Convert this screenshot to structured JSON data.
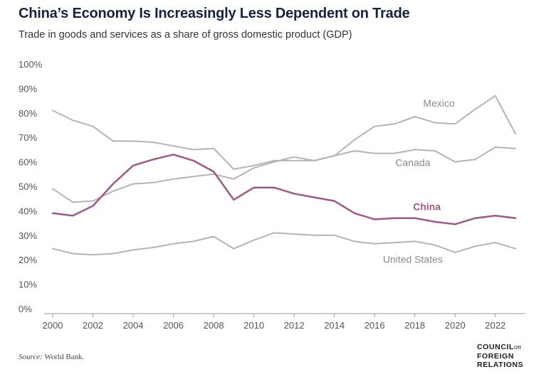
{
  "title": "China’s Economy Is Increasingly Less Dependent on Trade",
  "subtitle": "Trade in goods and services as a share of gross domestic product (GDP)",
  "source_label": "Source:",
  "source_text": " World Bank.",
  "logo": {
    "line1": "COUNCIL",
    "on": "on",
    "line2": "FOREIGN",
    "line3": "RELATIONS"
  },
  "colors": {
    "china": "#9e5a84",
    "others": "#b4b4b4",
    "axis": "#999999",
    "text": "#555555"
  },
  "chart_data": {
    "type": "line",
    "title": "China’s Economy Is Increasingly Less Dependent on Trade",
    "subtitle": "Trade in goods and services as a share of gross domestic product (GDP)",
    "xlabel": "",
    "ylabel": "",
    "xlim": [
      2000,
      2023
    ],
    "ylim": [
      0,
      100
    ],
    "x_ticks": [
      2000,
      2002,
      2004,
      2006,
      2008,
      2010,
      2012,
      2014,
      2016,
      2018,
      2020,
      2022
    ],
    "y_ticks": [
      0,
      10,
      20,
      30,
      40,
      50,
      60,
      70,
      80,
      90,
      100
    ],
    "y_tick_labels": [
      "0%",
      "10%",
      "20%",
      "30%",
      "40%",
      "50%",
      "60%",
      "70%",
      "80%",
      "90%",
      "100%"
    ],
    "grid": false,
    "x": [
      2000,
      2001,
      2002,
      2003,
      2004,
      2005,
      2006,
      2007,
      2008,
      2009,
      2010,
      2011,
      2012,
      2013,
      2014,
      2015,
      2016,
      2017,
      2018,
      2019,
      2020,
      2021,
      2022,
      2023
    ],
    "series": [
      {
        "name": "Mexico",
        "highlight": false,
        "values": [
          49,
          43.5,
          44,
          48,
          51,
          51.5,
          53,
          54,
          55,
          53,
          57.5,
          60,
          62,
          60.5,
          62.5,
          69,
          74.5,
          75.5,
          78.5,
          76,
          75.5,
          81.5,
          87,
          71.5
        ]
      },
      {
        "name": "Canada",
        "highlight": false,
        "values": [
          81,
          77,
          74.5,
          68.5,
          68.5,
          68,
          66.5,
          65,
          65.5,
          57,
          58.5,
          60.5,
          60.5,
          60.5,
          62.5,
          64.5,
          63.5,
          63.5,
          65,
          64.5,
          60,
          61,
          66,
          65.5
        ]
      },
      {
        "name": "China",
        "highlight": true,
        "values": [
          39,
          38,
          42,
          51,
          58.5,
          61,
          63,
          60.5,
          56,
          44.5,
          49.5,
          49.5,
          47,
          45.5,
          44,
          39,
          36.5,
          37,
          37,
          35.5,
          34.5,
          37,
          38,
          37
        ]
      },
      {
        "name": "United States",
        "highlight": false,
        "values": [
          24.5,
          22.5,
          22,
          22.5,
          24,
          25,
          26.5,
          27.5,
          29.5,
          24.5,
          28,
          31,
          30.5,
          30,
          30,
          27.5,
          26.5,
          27,
          27.5,
          26,
          23,
          25.5,
          27,
          24.5
        ]
      }
    ]
  }
}
